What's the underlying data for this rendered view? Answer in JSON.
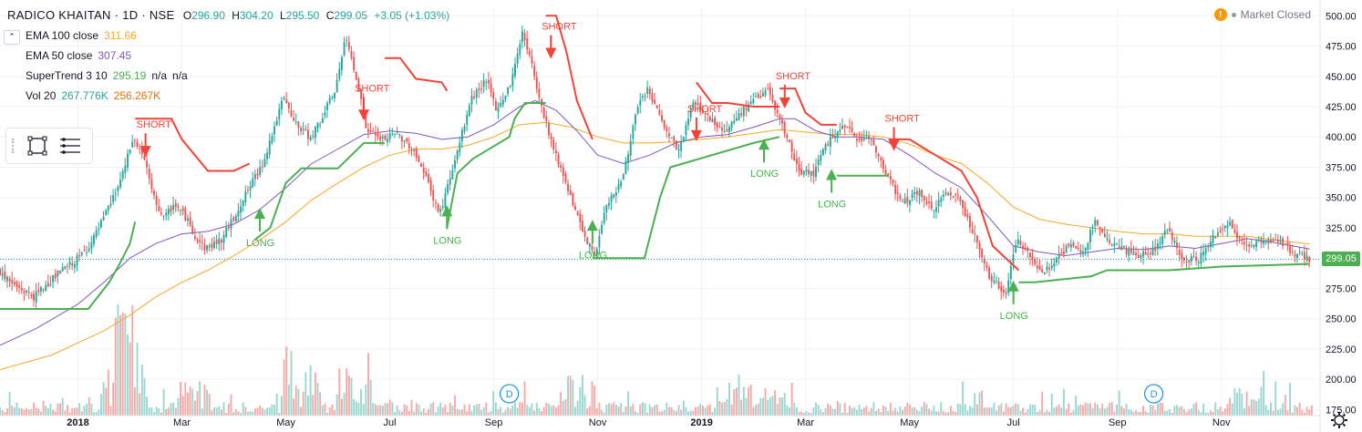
{
  "header": {
    "symbol": "RADICO KHAITAN · 1D · NSE",
    "o_label": "O",
    "o_value": "296.90",
    "h_label": "H",
    "h_value": "304.20",
    "l_label": "L",
    "l_value": "295.50",
    "c_label": "C",
    "c_value": "299.05",
    "change": "+3.05 (+1.03%)"
  },
  "indicators": [
    {
      "name": "EMA 100 close",
      "values": [
        "311.66"
      ],
      "colors": [
        "#f9a825"
      ]
    },
    {
      "name": "EMA 50 close",
      "values": [
        "307.45"
      ],
      "colors": [
        "#7e57c2"
      ]
    },
    {
      "name": "SuperTrend 3 10",
      "values": [
        "295.19",
        "n/a",
        "n/a"
      ],
      "colors": [
        "#4caf50",
        "#131722",
        "#131722"
      ]
    },
    {
      "name": "Vol 20",
      "values": [
        "267.776K",
        "256.267K"
      ],
      "colors": [
        "#26a69a",
        "#ef6c00"
      ]
    }
  ],
  "market_status": {
    "icon": "warning-icon",
    "text": "Market Closed"
  },
  "last_price": "299.05",
  "colors": {
    "up": "#26a69a",
    "down": "#ef5350",
    "supertrend_up": "#4caf50",
    "supertrend_down": "#f44336",
    "ema100": "#f9a825",
    "ema50": "#7e57c2"
  },
  "chart_data": {
    "type": "candlestick",
    "title": "RADICO KHAITAN · 1D · NSE",
    "y_ticks": [
      175.0,
      200.0,
      225.0,
      250.0,
      275.0,
      300.0,
      325.0,
      350.0,
      375.0,
      400.0,
      425.0,
      450.0,
      475.0,
      500.0
    ],
    "y_tick_labels": [
      "175.00",
      "200.00",
      "225.00",
      "250.00",
      "275.00",
      "300.00",
      "325.00",
      "350.00",
      "375.00",
      "400.00",
      "425.00",
      "450.00",
      "475.00",
      "500.00"
    ],
    "ylim": [
      170,
      507
    ],
    "x_tick_labels": [
      "2018",
      "Mar",
      "May",
      "Jul",
      "Sep",
      "Nov",
      "2019",
      "Mar",
      "May",
      "Jul",
      "Sep",
      "Nov"
    ],
    "x_tick_months": [
      0,
      2,
      4,
      6,
      8,
      10,
      12,
      14,
      16,
      18,
      20,
      22
    ],
    "xlim_months": [
      -1.5,
      23.9
    ],
    "price_path": [
      [
        -1.5,
        290
      ],
      [
        -1.2,
        278
      ],
      [
        -0.8,
        268
      ],
      [
        -0.4,
        285
      ],
      [
        0.0,
        298
      ],
      [
        0.3,
        312
      ],
      [
        0.6,
        338
      ],
      [
        0.9,
        368
      ],
      [
        1.1,
        398
      ],
      [
        1.3,
        385
      ],
      [
        1.5,
        350
      ],
      [
        1.7,
        332
      ],
      [
        1.9,
        345
      ],
      [
        2.1,
        335
      ],
      [
        2.3,
        318
      ],
      [
        2.5,
        308
      ],
      [
        2.8,
        315
      ],
      [
        3.0,
        330
      ],
      [
        3.3,
        355
      ],
      [
        3.6,
        378
      ],
      [
        3.8,
        405
      ],
      [
        4.0,
        432
      ],
      [
        4.2,
        412
      ],
      [
        4.5,
        400
      ],
      [
        4.7,
        412
      ],
      [
        5.0,
        440
      ],
      [
        5.2,
        482
      ],
      [
        5.4,
        450
      ],
      [
        5.6,
        405
      ],
      [
        5.9,
        398
      ],
      [
        6.2,
        402
      ],
      [
        6.5,
        390
      ],
      [
        6.8,
        360
      ],
      [
        7.0,
        335
      ],
      [
        7.3,
        380
      ],
      [
        7.6,
        430
      ],
      [
        7.9,
        448
      ],
      [
        8.1,
        420
      ],
      [
        8.4,
        448
      ],
      [
        8.6,
        488
      ],
      [
        8.8,
        455
      ],
      [
        9.0,
        420
      ],
      [
        9.2,
        390
      ],
      [
        9.5,
        355
      ],
      [
        9.8,
        315
      ],
      [
        10.0,
        302
      ],
      [
        10.2,
        345
      ],
      [
        10.5,
        362
      ],
      [
        10.8,
        422
      ],
      [
        11.0,
        440
      ],
      [
        11.3,
        410
      ],
      [
        11.6,
        388
      ],
      [
        11.9,
        430
      ],
      [
        12.2,
        415
      ],
      [
        12.5,
        405
      ],
      [
        12.8,
        420
      ],
      [
        13.0,
        428
      ],
      [
        13.3,
        440
      ],
      [
        13.5,
        418
      ],
      [
        13.7,
        398
      ],
      [
        13.9,
        372
      ],
      [
        14.2,
        370
      ],
      [
        14.5,
        398
      ],
      [
        14.8,
        408
      ],
      [
        15.0,
        400
      ],
      [
        15.3,
        398
      ],
      [
        15.6,
        370
      ],
      [
        15.9,
        345
      ],
      [
        16.2,
        355
      ],
      [
        16.5,
        340
      ],
      [
        16.8,
        355
      ],
      [
        17.0,
        350
      ],
      [
        17.3,
        318
      ],
      [
        17.6,
        282
      ],
      [
        17.9,
        272
      ],
      [
        18.1,
        315
      ],
      [
        18.3,
        305
      ],
      [
        18.6,
        288
      ],
      [
        18.9,
        300
      ],
      [
        19.1,
        310
      ],
      [
        19.4,
        305
      ],
      [
        19.6,
        330
      ],
      [
        19.9,
        315
      ],
      [
        20.2,
        305
      ],
      [
        20.5,
        302
      ],
      [
        20.8,
        308
      ],
      [
        21.0,
        325
      ],
      [
        21.3,
        300
      ],
      [
        21.6,
        298
      ],
      [
        21.9,
        318
      ],
      [
        22.2,
        328
      ],
      [
        22.5,
        310
      ],
      [
        22.8,
        315
      ],
      [
        23.1,
        315
      ],
      [
        23.4,
        305
      ],
      [
        23.7,
        299.05
      ]
    ],
    "ema50_path": [
      [
        -1.5,
        228
      ],
      [
        -0.8,
        242
      ],
      [
        0.0,
        262
      ],
      [
        0.5,
        280
      ],
      [
        1.0,
        300
      ],
      [
        1.5,
        312
      ],
      [
        2.0,
        320
      ],
      [
        2.5,
        322
      ],
      [
        3.0,
        328
      ],
      [
        3.5,
        340
      ],
      [
        4.0,
        358
      ],
      [
        4.5,
        378
      ],
      [
        5.0,
        390
      ],
      [
        5.5,
        402
      ],
      [
        6.0,
        405
      ],
      [
        6.5,
        403
      ],
      [
        7.0,
        398
      ],
      [
        7.5,
        400
      ],
      [
        8.0,
        410
      ],
      [
        8.5,
        425
      ],
      [
        8.8,
        430
      ],
      [
        9.2,
        422
      ],
      [
        9.6,
        405
      ],
      [
        10.0,
        385
      ],
      [
        10.5,
        378
      ],
      [
        11.0,
        385
      ],
      [
        11.5,
        395
      ],
      [
        12.0,
        400
      ],
      [
        12.5,
        402
      ],
      [
        13.0,
        408
      ],
      [
        13.5,
        415
      ],
      [
        13.8,
        415
      ],
      [
        14.2,
        405
      ],
      [
        14.6,
        400
      ],
      [
        15.0,
        400
      ],
      [
        15.5,
        398
      ],
      [
        16.0,
        385
      ],
      [
        16.5,
        370
      ],
      [
        17.0,
        358
      ],
      [
        17.5,
        335
      ],
      [
        18.0,
        310
      ],
      [
        18.5,
        305
      ],
      [
        19.0,
        302
      ],
      [
        19.5,
        305
      ],
      [
        20.0,
        308
      ],
      [
        20.5,
        307
      ],
      [
        21.0,
        310
      ],
      [
        21.5,
        308
      ],
      [
        22.0,
        312
      ],
      [
        22.5,
        316
      ],
      [
        23.0,
        313
      ],
      [
        23.7,
        307.45
      ]
    ],
    "ema100_path": [
      [
        -1.5,
        208
      ],
      [
        -0.5,
        220
      ],
      [
        0.5,
        240
      ],
      [
        1.0,
        253
      ],
      [
        1.5,
        268
      ],
      [
        2.0,
        280
      ],
      [
        2.5,
        290
      ],
      [
        3.0,
        302
      ],
      [
        3.5,
        315
      ],
      [
        4.0,
        330
      ],
      [
        4.5,
        348
      ],
      [
        5.0,
        362
      ],
      [
        5.5,
        375
      ],
      [
        6.0,
        385
      ],
      [
        6.5,
        390
      ],
      [
        7.0,
        390
      ],
      [
        7.5,
        393
      ],
      [
        8.0,
        400
      ],
      [
        8.5,
        410
      ],
      [
        9.0,
        412
      ],
      [
        9.5,
        408
      ],
      [
        10.0,
        400
      ],
      [
        10.5,
        395
      ],
      [
        11.0,
        395
      ],
      [
        11.5,
        396
      ],
      [
        12.0,
        398
      ],
      [
        12.5,
        400
      ],
      [
        13.0,
        403
      ],
      [
        13.5,
        406
      ],
      [
        14.0,
        404
      ],
      [
        14.5,
        402
      ],
      [
        15.0,
        402
      ],
      [
        15.5,
        400
      ],
      [
        16.0,
        394
      ],
      [
        16.5,
        385
      ],
      [
        17.0,
        378
      ],
      [
        17.5,
        362
      ],
      [
        18.0,
        342
      ],
      [
        18.5,
        332
      ],
      [
        19.0,
        328
      ],
      [
        19.5,
        325
      ],
      [
        20.0,
        322
      ],
      [
        20.5,
        320
      ],
      [
        21.0,
        320
      ],
      [
        21.5,
        318
      ],
      [
        22.0,
        318
      ],
      [
        22.5,
        318
      ],
      [
        23.0,
        315
      ],
      [
        23.7,
        311.66
      ]
    ],
    "supertrend_up": [
      [
        [
          -1.5,
          258
        ],
        [
          -0.4,
          258
        ],
        [
          0.2,
          258
        ],
        [
          0.6,
          280
        ],
        [
          0.8,
          295
        ],
        [
          1.0,
          312
        ],
        [
          1.1,
          330
        ]
      ],
      [
        [
          3.4,
          315
        ],
        [
          3.7,
          325
        ],
        [
          4.0,
          362
        ],
        [
          4.3,
          374
        ],
        [
          5.0,
          374
        ],
        [
          5.5,
          395
        ],
        [
          5.9,
          395
        ]
      ],
      [
        [
          7.1,
          325
        ],
        [
          7.3,
          370
        ],
        [
          7.6,
          382
        ],
        [
          8.3,
          400
        ],
        [
          8.4,
          415
        ],
        [
          8.6,
          428
        ],
        [
          9.0,
          428
        ]
      ],
      [
        [
          9.9,
          300
        ],
        [
          10.1,
          300
        ],
        [
          10.9,
          300
        ],
        [
          11.2,
          350
        ],
        [
          11.4,
          375
        ],
        [
          12.2,
          385
        ],
        [
          13.0,
          395
        ],
        [
          13.5,
          400
        ]
      ],
      [
        [
          14.6,
          368
        ],
        [
          15.0,
          368
        ],
        [
          15.4,
          368
        ],
        [
          15.6,
          368
        ]
      ],
      [
        [
          18.1,
          280
        ],
        [
          18.4,
          280
        ],
        [
          19.5,
          285
        ],
        [
          19.8,
          290
        ],
        [
          20.5,
          290
        ],
        [
          21.0,
          290
        ],
        [
          22.0,
          293
        ],
        [
          23.7,
          295.19
        ]
      ]
    ],
    "supertrend_down": [
      [
        [
          1.1,
          415
        ],
        [
          1.5,
          415
        ],
        [
          1.8,
          415
        ],
        [
          2.0,
          398
        ],
        [
          2.5,
          372
        ],
        [
          3.0,
          372
        ],
        [
          3.3,
          378
        ]
      ],
      [
        [
          5.9,
          465
        ],
        [
          6.2,
          465
        ],
        [
          6.5,
          448
        ],
        [
          7.0,
          445
        ],
        [
          7.1,
          438
        ]
      ],
      [
        [
          9.0,
          500
        ],
        [
          9.2,
          500
        ],
        [
          9.4,
          470
        ],
        [
          9.6,
          430
        ],
        [
          9.9,
          398
        ]
      ],
      [
        [
          13.5,
          440
        ],
        [
          13.8,
          440
        ],
        [
          14.0,
          420
        ],
        [
          14.3,
          410
        ],
        [
          14.6,
          410
        ]
      ],
      [
        [
          15.6,
          398
        ],
        [
          16.0,
          398
        ],
        [
          16.5,
          385
        ],
        [
          17.0,
          372
        ],
        [
          17.3,
          350
        ],
        [
          17.6,
          310
        ],
        [
          18.1,
          290
        ]
      ],
      [
        [
          11.9,
          445
        ],
        [
          12.2,
          428
        ],
        [
          12.5,
          428
        ],
        [
          13.0,
          425
        ],
        [
          13.5,
          425
        ]
      ]
    ],
    "signals": [
      {
        "label": "SHORT",
        "x": 1.3,
        "y": 385,
        "type": "short"
      },
      {
        "label": "LONG",
        "x": 3.5,
        "y": 340,
        "type": "long"
      },
      {
        "label": "SHORT",
        "x": 5.5,
        "y": 415,
        "type": "short"
      },
      {
        "label": "LONG",
        "x": 7.1,
        "y": 342,
        "type": "long"
      },
      {
        "label": "SHORT",
        "x": 9.1,
        "y": 466,
        "type": "short"
      },
      {
        "label": "LONG",
        "x": 9.9,
        "y": 330,
        "type": "long"
      },
      {
        "label": "SHORT",
        "x": 11.9,
        "y": 398,
        "type": "short"
      },
      {
        "label": "LONG",
        "x": 13.2,
        "y": 397,
        "type": "long"
      },
      {
        "label": "SHORT",
        "x": 13.6,
        "y": 425,
        "type": "short"
      },
      {
        "label": "LONG",
        "x": 14.5,
        "y": 372,
        "type": "long"
      },
      {
        "label": "SHORT",
        "x": 15.7,
        "y": 390,
        "type": "short"
      },
      {
        "label": "LONG",
        "x": 18.0,
        "y": 280,
        "type": "long"
      }
    ],
    "dividend_markers": [
      {
        "label": "D",
        "x": 8.3
      },
      {
        "label": "D",
        "x": 20.7
      }
    ],
    "volume_spikes": [
      [
        1.0,
        0.75
      ],
      [
        0.8,
        0.55
      ],
      [
        2.2,
        0.3
      ],
      [
        4.3,
        0.6
      ],
      [
        5.3,
        0.45
      ],
      [
        9.6,
        0.3
      ],
      [
        12.6,
        0.35
      ],
      [
        13.4,
        0.2
      ],
      [
        22.5,
        0.2
      ]
    ]
  }
}
